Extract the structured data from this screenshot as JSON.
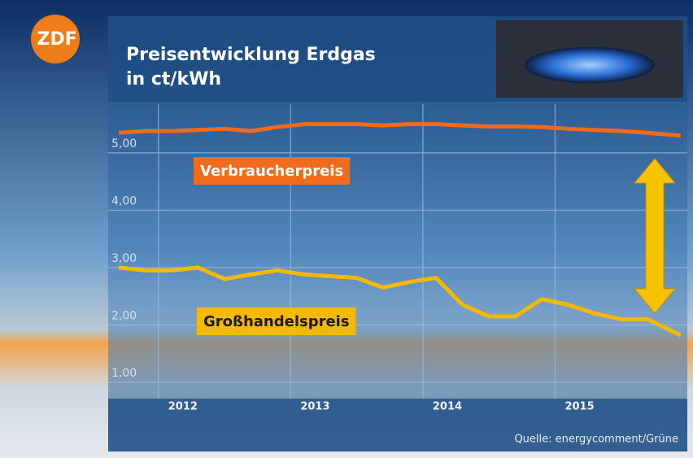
{
  "logo": "ZDF",
  "chart_data": {
    "type": "line",
    "title": "Preisentwicklung Erdgas",
    "subtitle": "in ct/kWh",
    "source": "Quelle: energycomment/Grüne",
    "x": [
      2011.7,
      2011.9,
      2012.1,
      2012.3,
      2012.5,
      2012.7,
      2012.9,
      2013.1,
      2013.3,
      2013.5,
      2013.7,
      2013.9,
      2014.1,
      2014.3,
      2014.5,
      2014.7,
      2014.9,
      2015.1,
      2015.3,
      2015.5,
      2015.7,
      2015.95
    ],
    "xlim": [
      2011.62,
      2016.0
    ],
    "xticks": [
      2012,
      2013,
      2014,
      2015
    ],
    "ylim": [
      0.8,
      5.85
    ],
    "yticks": [
      {
        "value": 1,
        "label": "1,00"
      },
      {
        "value": 2,
        "label": "2,00"
      },
      {
        "value": 3,
        "label": "3,00"
      },
      {
        "value": 4,
        "label": "4,00"
      },
      {
        "value": 5,
        "label": "5,00"
      }
    ],
    "grid": true,
    "series": [
      {
        "name": "Verbraucherpreis",
        "color": "#f26a1b",
        "values": [
          5.35,
          5.38,
          5.38,
          5.4,
          5.42,
          5.38,
          5.45,
          5.5,
          5.5,
          5.5,
          5.48,
          5.5,
          5.5,
          5.48,
          5.46,
          5.46,
          5.45,
          5.42,
          5.4,
          5.38,
          5.35,
          5.3
        ]
      },
      {
        "name": "Großhandelspreis",
        "color": "#f7b900",
        "values": [
          3.0,
          2.95,
          2.95,
          3.0,
          2.8,
          2.88,
          2.95,
          2.88,
          2.85,
          2.82,
          2.65,
          2.75,
          2.82,
          2.35,
          2.15,
          2.15,
          2.45,
          2.35,
          2.2,
          2.1,
          2.1,
          1.82
        ]
      }
    ]
  }
}
